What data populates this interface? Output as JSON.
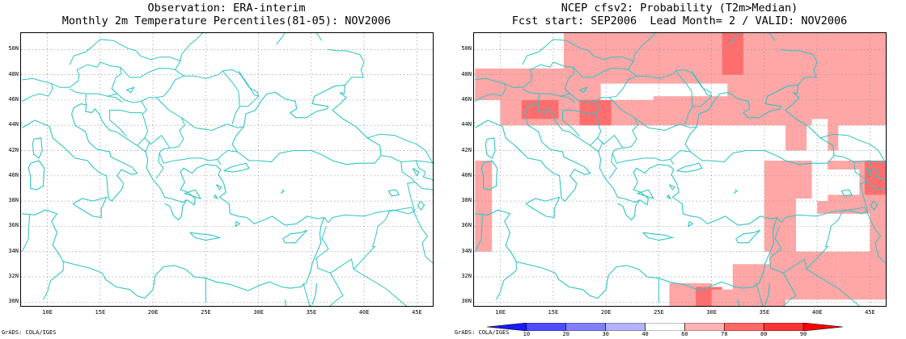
{
  "left": {
    "title1": "Observation: ERA-interim",
    "title2": "Monthly 2m Temperature Percentiles(81-05): NOV2006"
  },
  "right": {
    "title1": "NCEP cfsv2: Probability (T2m>Median)",
    "title2": "Fcst start: SEP2006  Lead Month= 2 / VALID: NOV2006"
  },
  "lat_labels": [
    "50N",
    "48N",
    "46N",
    "44N",
    "42N",
    "40N",
    "38N",
    "36N",
    "34N",
    "32N",
    "30N"
  ],
  "lon_labels": [
    "10E",
    "15E",
    "20E",
    "25E",
    "30E",
    "35E",
    "40E",
    "45E"
  ],
  "credit": "GrADS: COLA/IGES",
  "colorbar": {
    "labels": [
      "10",
      "20",
      "30",
      "40",
      "60",
      "70",
      "80",
      "90"
    ],
    "colors": [
      "#1a1aff",
      "#4d4dff",
      "#8080ff",
      "#b3b3ff",
      "#ffffff",
      "#ffb3b3",
      "#ff6666",
      "#ff3333",
      "#ff0000"
    ]
  },
  "colors": {
    "coast": "#2ec4c4",
    "grid": "#999999",
    "prob60_70": "#ffa6a6",
    "prob70_80": "#ff6e6e"
  }
}
